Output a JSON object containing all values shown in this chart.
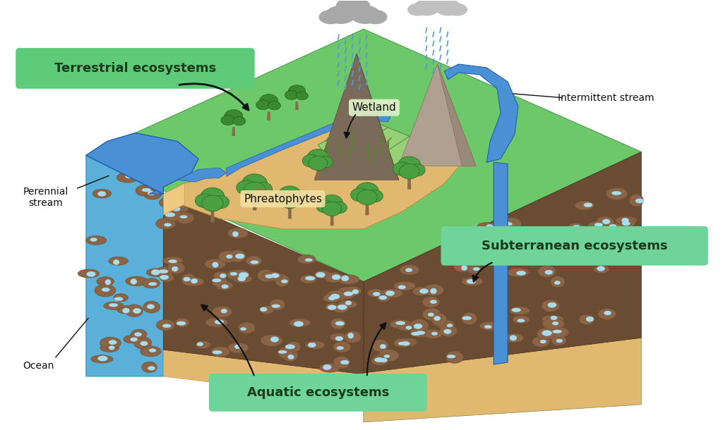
{
  "bg_color": "#ffffff",
  "label_bg_terrestrial": "#5ecb7a",
  "label_bg_subterranean": "#6ed49a",
  "label_bg_aquatic": "#6ed49a",
  "label_text_color": "#1a3a1a",
  "labels": {
    "terrestrial": "Terrestrial ecosystems",
    "subterranean": "Subterranean ecosystems",
    "aquatic": "Aquatic ecosystems",
    "phreatophytes": "Phreatophytes",
    "wetland": "Wetland",
    "perennial_stream": "Perennial\nstream",
    "intermittent_stream": "Intermittent stream",
    "ocean": "Ocean"
  },
  "colors": {
    "green_surface": "#6dc86a",
    "sand": "#e0b870",
    "sand_light": "#eecb80",
    "brown_rock": "#7a5c3a",
    "dark_brown": "#6a4c32",
    "med_brown": "#8a6444",
    "blue_water": "#4a90d4",
    "blue_ocean": "#5ab0d8",
    "blue_stream": "#2a72c8",
    "teal_bottom": "#70bcc0",
    "light_blue_dots": "#aadcf0",
    "mountain_dark": "#7a6a5a",
    "mountain_med": "#9a8878",
    "mountain_light": "#b0a090",
    "cloud_gray": "#a8a8a8",
    "cloud_light": "#c0c0c0",
    "rain_blue": "#5599dd",
    "tree_trunk": "#8a6a4a",
    "tree_green": "#3a8830",
    "tree_green2": "#4aa040",
    "wetland_green": "#90c870",
    "reed_green": "#608030"
  }
}
